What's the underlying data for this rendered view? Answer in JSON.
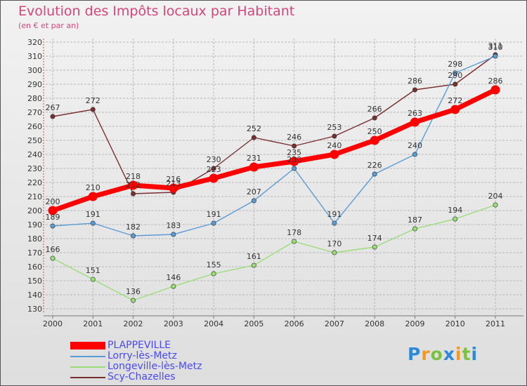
{
  "title": "Evolution des Impôts locaux par Habitant",
  "subtitle": "(en € et par an)",
  "logo": "Proxiti",
  "chart_data": {
    "type": "line",
    "title": "Evolution des Impôts locaux par Habitant",
    "subtitle": "(en € et par an)",
    "xlabel": "",
    "ylabel": "",
    "ylim": [
      130,
      320
    ],
    "yticks": [
      130,
      140,
      150,
      160,
      170,
      180,
      190,
      200,
      210,
      220,
      230,
      240,
      250,
      260,
      270,
      280,
      290,
      300,
      310,
      320
    ],
    "grid": true,
    "x": [
      "2000",
      "2001",
      "2002",
      "2003",
      "2004",
      "2005",
      "2006",
      "2007",
      "2008",
      "2009",
      "2010",
      "2011"
    ],
    "series": [
      {
        "name": "PLAPPEVILLE",
        "color": "#ff0000",
        "values": [
          200,
          210,
          218,
          216,
          223,
          231,
          235,
          240,
          250,
          263,
          272,
          286
        ]
      },
      {
        "name": "Lorry-lès-Metz",
        "color": "#5b9bd5",
        "values": [
          189,
          191,
          182,
          183,
          191,
          207,
          230,
          191,
          226,
          240,
          298,
          310
        ]
      },
      {
        "name": "Longeville-lès-Metz",
        "color": "#99dd77",
        "values": [
          166,
          151,
          136,
          146,
          155,
          161,
          178,
          170,
          174,
          187,
          194,
          204
        ]
      },
      {
        "name": "Scy-Chazelles",
        "color": "#7a2f2f",
        "values": [
          267,
          272,
          212,
          213,
          230,
          252,
          246,
          253,
          266,
          286,
          290,
          311
        ]
      }
    ],
    "data_labels": [
      [
        "200",
        "210",
        "218",
        "216",
        "223",
        "231",
        "235",
        "240",
        "250",
        "263",
        "272",
        "286"
      ],
      [
        "189",
        "191",
        "182",
        "183",
        "191",
        "207",
        "230",
        "191",
        "226",
        "240",
        "298",
        "310"
      ],
      [
        "166",
        "151",
        "136",
        "146",
        "155",
        "161",
        "178",
        "170",
        "174",
        "187",
        "194",
        "204"
      ],
      [
        "267",
        "272",
        "212",
        "213",
        "230",
        "252",
        "246",
        "253",
        "266",
        "286",
        "290",
        "311"
      ]
    ],
    "legend_position": "bottom-left"
  }
}
